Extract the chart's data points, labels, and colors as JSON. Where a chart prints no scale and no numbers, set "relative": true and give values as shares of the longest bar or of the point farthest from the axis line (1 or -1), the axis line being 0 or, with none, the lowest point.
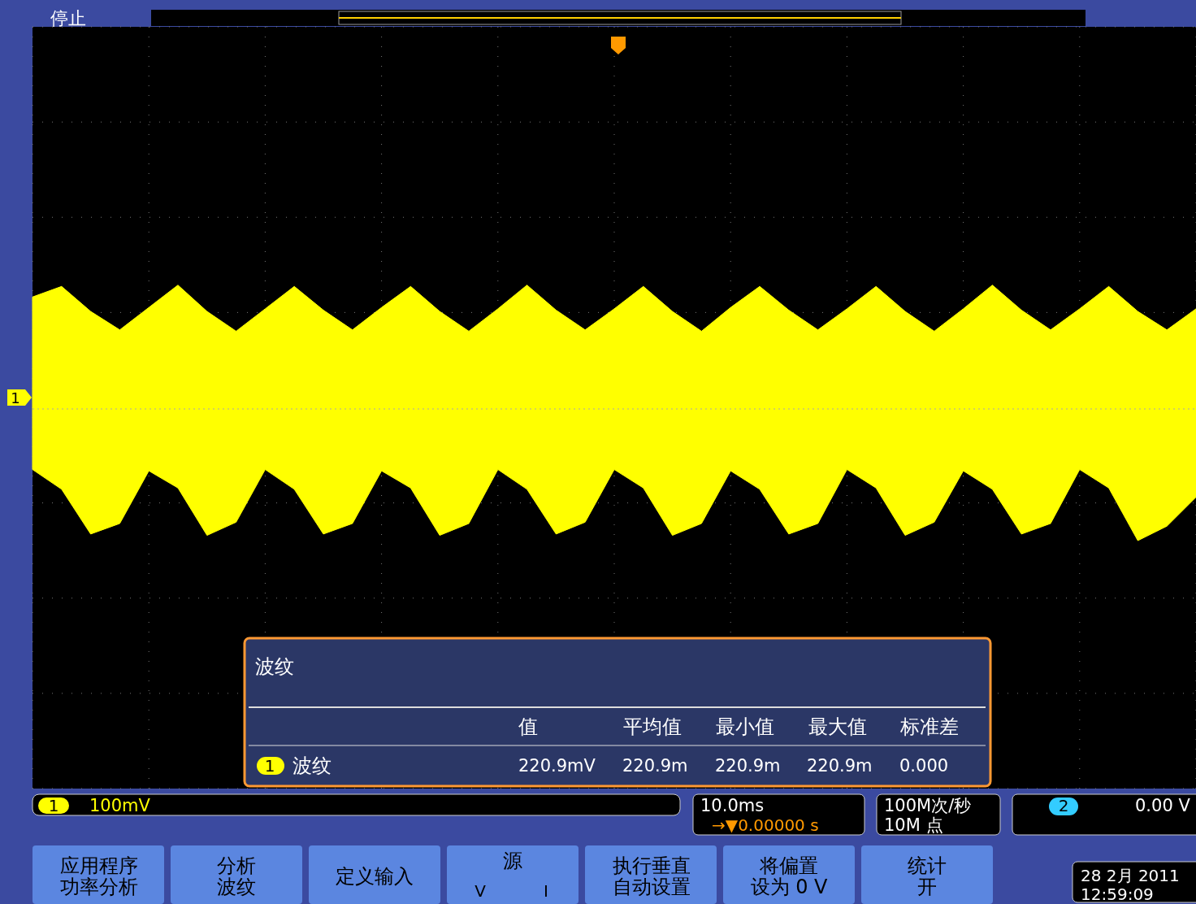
{
  "chart_data": {
    "type": "area",
    "relative": true,
    "grid": true,
    "categories": [
      null,
      null,
      null,
      null,
      null,
      null,
      null,
      null,
      null,
      null,
      null,
      null,
      null,
      null,
      null,
      null,
      null,
      null,
      null,
      null,
      null,
      null,
      null,
      null,
      null,
      null,
      null,
      null,
      null,
      null,
      null,
      null,
      null,
      null,
      null,
      null,
      null,
      null,
      null,
      null,
      null
    ],
    "series": [
      {
        "color": "#ffff00",
        "values": [
          0.85,
          0.93,
          0.74,
          0.6,
          0.77,
          0.94,
          0.74,
          0.59,
          0.76,
          0.93,
          0.75,
          0.6,
          0.77,
          0.93,
          0.74,
          0.59,
          0.76,
          0.94,
          0.75,
          0.6,
          0.76,
          0.93,
          0.74,
          0.59,
          0.77,
          0.93,
          0.75,
          0.6,
          0.76,
          0.93,
          0.74,
          0.59,
          0.76,
          0.94,
          0.75,
          0.6,
          0.76,
          0.93,
          0.74,
          0.6,
          0.76
        ]
      },
      {
        "color": "#ffff00",
        "values": [
          -0.46,
          -0.61,
          -0.95,
          -0.87,
          -0.47,
          -0.6,
          -0.96,
          -0.86,
          -0.46,
          -0.61,
          -0.95,
          -0.87,
          -0.47,
          -0.6,
          -0.96,
          -0.87,
          -0.46,
          -0.61,
          -0.95,
          -0.86,
          -0.46,
          -0.6,
          -0.96,
          -0.87,
          -0.47,
          -0.61,
          -0.95,
          -0.87,
          -0.46,
          -0.6,
          -0.96,
          -0.86,
          -0.47,
          -0.61,
          -0.95,
          -0.87,
          -0.46,
          -0.6,
          -1.0,
          -0.89,
          -0.67
        ]
      }
    ],
    "ref_lines": [
      {
        "axis": "y",
        "value": 0,
        "color": "#aaaaaa",
        "line_style": "dotted"
      }
    ],
    "annotations": [
      "停止",
      "波纹",
      "值",
      "平均值",
      "最小值",
      "最大值",
      "标准差",
      "1",
      "波纹",
      "220.9mV",
      "220.9m",
      "220.9m",
      "220.9m",
      "0.000",
      "1",
      "100mV",
      "10.0ms",
      "→▼0.00000 s",
      "100M次/秒",
      "10M 点",
      "2",
      "0.00 V",
      "应用程序",
      "功率分析",
      "分析",
      "波纹",
      "定义输入",
      "源",
      "V",
      "I",
      "执行垂直",
      "自动设置",
      "将偏置",
      "设为 0 V",
      "统计",
      "开",
      "28 2月  2011",
      "12:59:09",
      "1"
    ]
  }
}
